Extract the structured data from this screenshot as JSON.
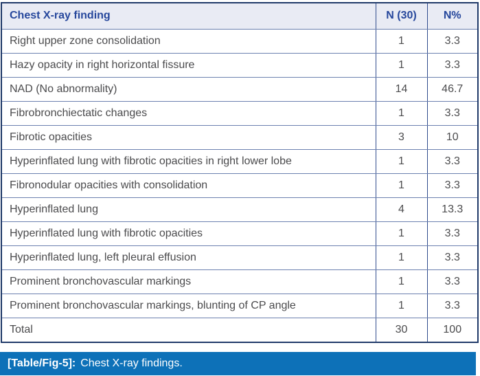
{
  "table": {
    "columns": [
      {
        "key": "finding",
        "label": "Chest X-ray finding"
      },
      {
        "key": "n",
        "label": "N (30)"
      },
      {
        "key": "pct",
        "label": "N%"
      }
    ],
    "rows": [
      {
        "finding": "Right upper zone consolidation",
        "n": "1",
        "pct": "3.3"
      },
      {
        "finding": "Hazy opacity in right horizontal fissure",
        "n": "1",
        "pct": "3.3"
      },
      {
        "finding": "NAD (No abnormality)",
        "n": "14",
        "pct": "46.7"
      },
      {
        "finding": "Fibrobronchiectatic changes",
        "n": "1",
        "pct": "3.3"
      },
      {
        "finding": "Fibrotic opacities",
        "n": "3",
        "pct": "10"
      },
      {
        "finding": "Hyperinflated lung with fibrotic opacities in right lower lobe",
        "n": "1",
        "pct": "3.3"
      },
      {
        "finding": "Fibronodular opacities with consolidation",
        "n": "1",
        "pct": "3.3"
      },
      {
        "finding": "Hyperinflated lung",
        "n": "4",
        "pct": "13.3"
      },
      {
        "finding": "Hyperinflated lung with fibrotic opacities",
        "n": "1",
        "pct": "3.3"
      },
      {
        "finding": "Hyperinflated lung, left pleural effusion",
        "n": "1",
        "pct": "3.3"
      },
      {
        "finding": "Prominent bronchovascular markings",
        "n": "1",
        "pct": "3.3"
      },
      {
        "finding": "Prominent bronchovascular markings, blunting of CP angle",
        "n": "1",
        "pct": "3.3"
      },
      {
        "finding": "Total",
        "n": "30",
        "pct": "100"
      }
    ]
  },
  "caption": {
    "tag": "[Table/Fig-5]:",
    "text": "Chest X-ray findings."
  },
  "colors": {
    "border_navy": "#1F3968",
    "header_bg": "#E9EBF4",
    "header_text": "#26479C",
    "body_text": "#4B4B4D",
    "grid_vertical": "#2E4A8C",
    "grid_horizontal": "#6B80AF",
    "caption_bg": "#0D71B8",
    "caption_text": "#FFFFFF",
    "page_bg": "#FFFFFF"
  }
}
